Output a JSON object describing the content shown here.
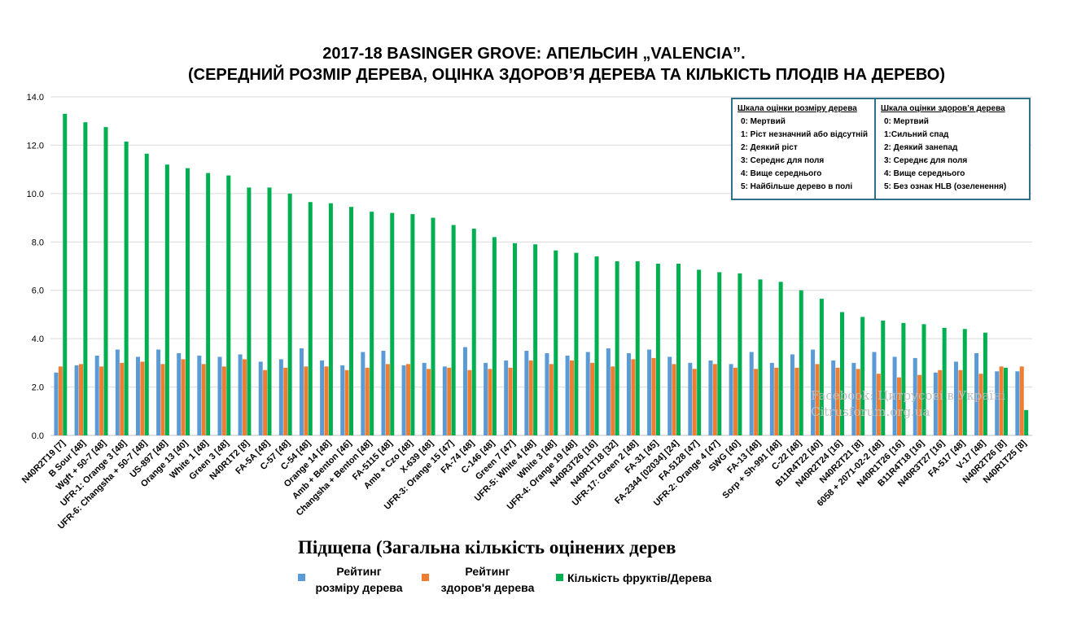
{
  "chart_data": {
    "type": "bar",
    "title_line1": "2017-18 BASINGER GROVE: АПЕЛЬСИН „VALENCIA”.",
    "title_line2": "(СЕРЕДНИЙ РОЗМІР ДЕРЕВА, ОЦІНКА ЗДОРОВ’Я ДЕРЕВА ТА КІЛЬКІСТЬ ПЛОДІВ НА ДЕРЕВО)",
    "xlabel": "Підщепа (Загальна кількість оцінених дерев",
    "ylabel": "",
    "ylim": [
      0,
      14
    ],
    "yticks": [
      "0.0",
      "2.0",
      "4.0",
      "6.0",
      "8.0",
      "10.0",
      "12.0",
      "14.0"
    ],
    "grid": true,
    "categories": [
      "N40R2T19 [7]",
      "B Sour [48]",
      "Wgft + 50-7 [48]",
      "UFR-1: Orange 3 [48]",
      "UFR-6: Changsha + 50-7 [48]",
      "US-897 [48]",
      "Orange 13 [40]",
      "White 1 [48]",
      "Green 3 [48]",
      "N40R1T2 [8]",
      "FA-5A [48]",
      "C-57 [48]",
      "C-54 [48]",
      "Orange 14 [48]",
      "Amb + Benton [46]",
      "Changsha + Benton [48]",
      "FA-5115 [48]",
      "Amb + Czo [48]",
      "X-639 [48]",
      "UFR-3: Orange 15 [47]",
      "FA-74 [48]",
      "C-146 [48]",
      "Green 7 [47]",
      "UFR-5: White 4 [48]",
      "White 3 [48]",
      "UFR-4: Orange 19 [48]",
      "N40R3T26 [16]",
      "N40R1T18 [32]",
      "UFR-17: Green 2 [48]",
      "FA-31 [45]",
      "FA-2344 [02034] [24]",
      "FA-5128 [47]",
      "UFR-2: Orange 4 [47]",
      "SWG [40]",
      "FA-13 [48]",
      "Sorp + Sh-991 [48]",
      "C-22 [48]",
      "B11R4T22 [40]",
      "N40R2T24 [16]",
      "N40R2T21 [8]",
      "6058 + 2071-02-2 [48]",
      "N40R1T26 [16]",
      "B11R4T18 [16]",
      "N40R3T27 [16]",
      "FA-517 [48]",
      "V-17 [48]",
      "N40R2T26 [8]",
      "N40R1T25 [8]"
    ],
    "series": [
      {
        "name": "Рейтинг розміру дерева",
        "color": "#5b9bd5",
        "values": [
          2.6,
          2.9,
          3.3,
          3.55,
          3.25,
          3.55,
          3.4,
          3.3,
          3.25,
          3.35,
          3.05,
          3.15,
          3.6,
          3.1,
          2.9,
          3.45,
          3.5,
          2.9,
          3.0,
          2.85,
          3.65,
          3.0,
          3.1,
          3.5,
          3.4,
          3.3,
          3.45,
          3.6,
          3.4,
          3.55,
          3.25,
          3.0,
          3.1,
          2.95,
          3.45,
          3.0,
          3.35,
          3.55,
          3.1,
          3.0,
          3.45,
          3.25,
          3.2,
          2.6,
          3.05,
          3.4,
          2.65,
          2.65
        ]
      },
      {
        "name": "Рейтинг здоров'я дерева",
        "color": "#ed7d31",
        "values": [
          2.85,
          2.95,
          2.85,
          3.0,
          3.05,
          2.95,
          3.15,
          2.95,
          2.85,
          3.15,
          2.7,
          2.8,
          2.85,
          2.85,
          2.7,
          2.8,
          2.95,
          2.95,
          2.75,
          2.8,
          2.7,
          2.75,
          2.8,
          3.1,
          2.95,
          3.1,
          3.0,
          2.85,
          3.15,
          3.2,
          2.95,
          2.75,
          2.95,
          2.8,
          2.75,
          2.8,
          2.8,
          2.95,
          2.8,
          2.75,
          2.55,
          2.4,
          2.5,
          2.7,
          2.7,
          2.55,
          2.85,
          2.85
        ]
      },
      {
        "name": "Кількість фруктів/Дерева",
        "color": "#00b050",
        "values": [
          13.3,
          12.95,
          12.75,
          12.15,
          11.65,
          11.2,
          11.05,
          10.85,
          10.75,
          10.25,
          10.25,
          10.0,
          9.65,
          9.6,
          9.45,
          9.25,
          9.2,
          9.15,
          9.0,
          8.7,
          8.55,
          8.2,
          7.95,
          7.9,
          7.65,
          7.55,
          7.4,
          7.2,
          7.2,
          7.1,
          7.1,
          6.85,
          6.75,
          6.7,
          6.45,
          6.35,
          6.0,
          5.65,
          5.1,
          4.9,
          4.75,
          4.65,
          4.6,
          4.45,
          4.4,
          4.25,
          2.8,
          1.05
        ]
      }
    ]
  },
  "legend": {
    "size_line1": "Рейтинг",
    "size_line2": "розміру дерева",
    "health_line1": "Рейтинг",
    "health_line2": "здоров'я дерева",
    "fruit": "Кількість фруктів/Дерева"
  },
  "scale_size": {
    "title": "Шкала оцінки розміру дерева",
    "items": [
      "0: Мертвий",
      "1: Ріст незначний або відсутній",
      "2: Деякий ріст",
      "3: Середнє для поля",
      "4: Вище середнього",
      "5: Найбільше дерево в полі"
    ]
  },
  "scale_health": {
    "title": "Шкала оцінки здоров’я дерева",
    "items": [
      "0: Мертвий",
      "1:Сильний спад",
      "2: Деякий занепад",
      "3: Середнє для поля",
      "4: Вище середнього",
      "5: Без ознак HLB (озеленення)"
    ]
  },
  "watermark": {
    "line1": "Facebook: Цитрусові в Україні",
    "line2": "Citrusforum.org.ua"
  }
}
